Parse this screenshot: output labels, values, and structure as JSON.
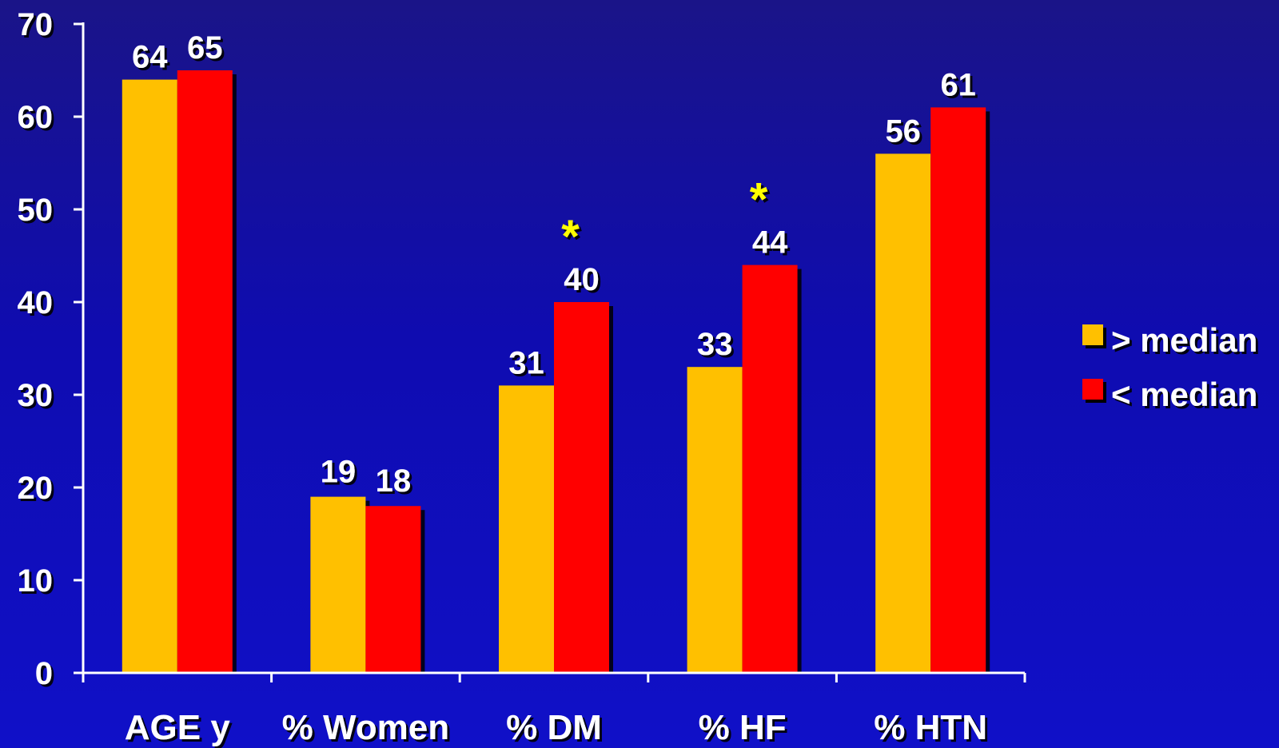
{
  "chart_data": {
    "type": "bar",
    "categories": [
      "AGE y",
      "% Women",
      "% DM",
      "% HF",
      "% HTN"
    ],
    "series": [
      {
        "name": "> median",
        "values": [
          64,
          19,
          31,
          33,
          56
        ]
      },
      {
        "name": "< median",
        "values": [
          65,
          18,
          40,
          44,
          61
        ]
      }
    ],
    "y_ticks": [
      "0",
      "10",
      "20",
      "30",
      "40",
      "50",
      "60",
      "70"
    ],
    "ylim": [
      0,
      70
    ],
    "annotations": [
      {
        "category": "% DM",
        "text": "*"
      },
      {
        "category": "% HF",
        "text": "*"
      }
    ],
    "legend_position": "right",
    "colors": {
      "series_1": "#ffc000",
      "series_2": "#ff0000",
      "annotation": "#ffff00",
      "axis": "#ffffff",
      "text": "#ffffff",
      "background": "#1010b8"
    }
  }
}
